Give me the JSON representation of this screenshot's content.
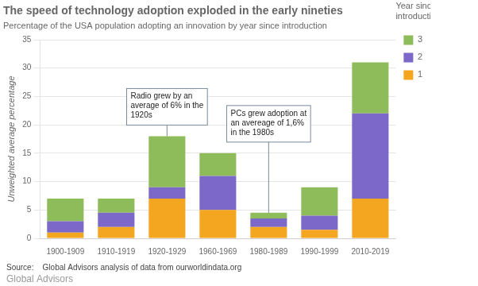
{
  "chart_data": {
    "type": "bar",
    "title": "The speed of technology adoption exploded in the early nineties",
    "subtitle": "Percentage of the USA population adopting an innovation by year since introduction",
    "ylabel": "Unweighted average percentage",
    "categories": [
      "1900-1909",
      "1910-1919",
      "1920-1929",
      "1960-1969",
      "1980-1989",
      "1990-1999",
      "2010-2019"
    ],
    "series": [
      {
        "name": "1",
        "color": "#F4A621",
        "values": [
          1.0,
          2.0,
          7.0,
          5.0,
          2.0,
          1.5,
          7.0
        ]
      },
      {
        "name": "2",
        "color": "#7B68C8",
        "values": [
          2.0,
          2.5,
          2.0,
          6.0,
          1.5,
          2.5,
          15.0
        ]
      },
      {
        "name": "3",
        "color": "#8FBC5A",
        "values": [
          4.0,
          2.5,
          9.0,
          4.0,
          1.0,
          5.0,
          9.0
        ]
      }
    ],
    "stacked": true,
    "ylim": [
      0,
      35
    ],
    "yticks": [
      0,
      5,
      10,
      15,
      20,
      25,
      30,
      35
    ],
    "grid": true,
    "legend": "right",
    "legend_title": "Year since\nintroduction",
    "annotations": [
      {
        "text": "Radio grew by an\naverage of 6% in the\n1920s",
        "x": "1920-1929",
        "y": 18.0
      },
      {
        "text": "PCs grew adoption at\nan avereage of 1,6%\nin the 1980s",
        "x": "1980-1989",
        "y": 4.5
      }
    ],
    "source": "Source:    Global Advisors analysis of data from ourworldindata.org",
    "brand": "Global Advisors"
  }
}
